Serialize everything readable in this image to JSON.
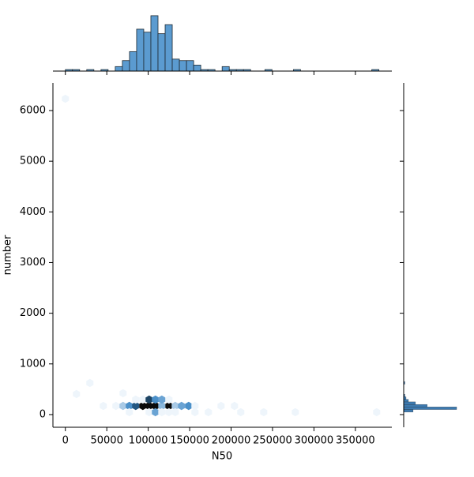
{
  "chart_data": [
    {
      "type": "hexbin",
      "x_label": "N50",
      "y_label": "number",
      "x": [
        45800,
        61000,
        69600,
        77200,
        84900,
        93500,
        101100,
        108700,
        116400,
        125000,
        132600,
        140200,
        148800,
        156400,
        187900,
        204100,
        84900,
        93500,
        101100,
        108700,
        116400,
        125000,
        77200,
        101100,
        108700,
        116400,
        125000,
        132600,
        156400,
        172600,
        211700,
        239400,
        277500,
        375700,
        0,
        13400,
        29600,
        69600
      ],
      "y": [
        171,
        171,
        171,
        171,
        171,
        171,
        171,
        171,
        171,
        171,
        171,
        171,
        171,
        171,
        171,
        171,
        296,
        296,
        296,
        296,
        296,
        296,
        47,
        47,
        47,
        47,
        47,
        47,
        47,
        47,
        47,
        47,
        47,
        47,
        6232,
        405,
        623,
        421
      ],
      "counts": [
        1,
        1,
        2,
        5,
        8,
        12,
        12,
        12,
        3,
        12,
        2,
        4,
        5,
        1,
        1,
        1,
        1,
        1,
        9,
        5,
        4,
        1,
        1,
        1,
        4,
        1,
        1,
        1,
        1,
        1,
        1,
        1,
        1,
        1,
        1,
        1,
        1,
        1
      ],
      "cmap": [
        "#eef5fb",
        "#2f7fc1",
        "#0b0b0b"
      ],
      "xlim": [
        -15000,
        394000
      ],
      "ylim": [
        -250,
        6545
      ],
      "xticks": [
        0,
        50000,
        100000,
        150000,
        200000,
        250000,
        300000,
        350000
      ],
      "yticks": [
        0,
        1000,
        2000,
        3000,
        4000,
        5000,
        6000
      ]
    },
    {
      "type": "histogram",
      "orientation": "vertical",
      "color": "#5b9bd0",
      "bins": [
        0,
        8600,
        17200,
        25800,
        34400,
        43000,
        51600,
        60200,
        68800,
        77400,
        86000,
        94600,
        103200,
        111800,
        120400,
        129000,
        137600,
        146200,
        154800,
        163400,
        172000,
        180600,
        189200,
        197800,
        206400,
        215000,
        223600,
        232200,
        240800,
        249400,
        258000,
        266600,
        275200,
        283800,
        292400,
        301000,
        309600,
        318200,
        326800,
        335400,
        344000,
        352600,
        361200,
        369800,
        378400
      ],
      "counts": [
        1,
        1,
        0,
        1,
        0,
        1,
        0,
        3,
        7,
        13,
        28,
        26,
        37,
        25,
        31,
        8,
        7,
        7,
        4,
        1,
        1,
        0,
        3,
        1,
        1,
        1,
        0,
        0,
        1,
        0,
        0,
        0,
        1,
        0,
        0,
        0,
        0,
        0,
        0,
        0,
        0,
        0,
        0,
        1
      ],
      "xlim": [
        -15000,
        394000
      ],
      "ylim": [
        0,
        38
      ]
    },
    {
      "type": "histogram",
      "orientation": "horizontal",
      "color": "#3d7ab0",
      "bins": [
        0,
        50,
        100,
        150,
        200,
        250,
        300,
        350,
        400,
        450,
        500,
        550,
        600,
        650
      ],
      "counts": [
        0,
        8,
        45,
        20,
        10,
        4,
        2,
        1,
        0,
        0,
        0,
        0,
        1
      ],
      "xlim": [
        0,
        47
      ],
      "ylim": [
        -250,
        6545
      ]
    }
  ]
}
